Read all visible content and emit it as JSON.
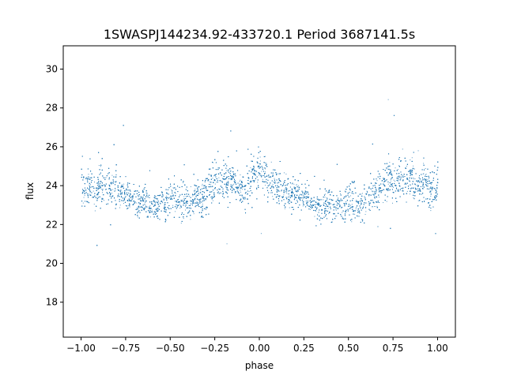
{
  "chart_data": {
    "type": "scatter",
    "title": "1SWASPJ144234.92-433720.1 Period 3687141.5s",
    "xlabel": "phase",
    "ylabel": "flux",
    "xlim": [
      -1.1,
      1.1
    ],
    "ylim": [
      16.2,
      31.2
    ],
    "xticks": [
      -1.0,
      -0.75,
      -0.5,
      -0.25,
      0.0,
      0.25,
      0.5,
      0.75,
      1.0
    ],
    "xtick_labels": [
      "−1.00",
      "−0.75",
      "−0.50",
      "−0.25",
      "0.00",
      "0.25",
      "0.50",
      "0.75",
      "1.00"
    ],
    "yticks": [
      18,
      20,
      22,
      24,
      26,
      28,
      30
    ],
    "ytick_labels": [
      "18",
      "20",
      "22",
      "24",
      "26",
      "28",
      "30"
    ],
    "grid": false,
    "marker_color": "#1f77b4",
    "series": [
      {
        "name": "",
        "x": [
          -1.0,
          -0.98,
          -0.95,
          -0.92,
          -0.9,
          -0.88,
          -0.85,
          -0.82,
          -0.8,
          -0.78,
          -0.75,
          -0.72,
          -0.7,
          -0.68,
          -0.65,
          -0.62,
          -0.6,
          -0.58,
          -0.55,
          -0.52,
          -0.5,
          -0.48,
          -0.45,
          -0.42,
          -0.4,
          -0.38,
          -0.35,
          -0.32,
          -0.3,
          -0.28,
          -0.25,
          -0.22,
          -0.2,
          -0.18,
          -0.15,
          -0.12,
          -0.1,
          -0.08,
          -0.05,
          -0.02,
          0.0,
          0.02,
          0.05,
          0.08,
          0.1,
          0.12,
          0.15,
          0.18,
          0.2,
          0.22,
          0.25,
          0.28,
          0.3,
          0.32,
          0.35,
          0.38,
          0.4,
          0.42,
          0.45,
          0.48,
          0.5,
          0.52,
          0.55,
          0.58,
          0.6,
          0.62,
          0.65,
          0.68,
          0.7,
          0.72,
          0.75,
          0.78,
          0.8,
          0.82,
          0.85,
          0.88,
          0.9,
          0.92,
          0.95,
          0.98,
          1.0
        ],
        "y": [
          24.0,
          23.8,
          24.1,
          23.6,
          24.3,
          24.0,
          23.9,
          23.7,
          24.1,
          23.5,
          23.6,
          23.4,
          23.3,
          23.2,
          23.4,
          23.0,
          23.1,
          22.9,
          23.2,
          23.0,
          23.4,
          23.6,
          23.3,
          23.1,
          23.0,
          23.2,
          23.5,
          23.3,
          23.8,
          24.1,
          24.3,
          24.4,
          24.2,
          24.5,
          24.1,
          24.0,
          23.8,
          23.9,
          24.4,
          24.6,
          24.8,
          24.5,
          24.3,
          24.1,
          24.0,
          23.9,
          23.8,
          23.6,
          23.7,
          23.5,
          23.4,
          23.2,
          23.1,
          23.0,
          23.2,
          22.9,
          23.0,
          22.8,
          23.1,
          22.9,
          23.2,
          23.3,
          23.1,
          23.0,
          23.3,
          23.5,
          23.6,
          23.9,
          24.1,
          24.3,
          24.2,
          24.4,
          24.5,
          24.3,
          24.6,
          24.1,
          23.9,
          24.2,
          24.0,
          23.8,
          24.1
        ],
        "scatter": [
          2.2,
          2.0,
          2.4,
          2.1,
          2.3,
          2.0,
          2.1,
          2.2,
          2.5,
          2.0,
          1.8,
          1.8,
          1.7,
          1.7,
          1.8,
          1.8,
          1.7,
          1.7,
          1.8,
          1.9,
          2.0,
          2.2,
          2.6,
          2.0,
          1.8,
          1.8,
          1.9,
          2.0,
          2.1,
          2.3,
          2.4,
          2.2,
          2.3,
          2.2,
          2.1,
          2.0,
          2.1,
          2.2,
          2.5,
          2.4,
          2.6,
          2.3,
          2.2,
          2.0,
          1.9,
          1.9,
          1.8,
          1.8,
          1.9,
          1.8,
          1.8,
          1.7,
          1.7,
          1.7,
          1.8,
          1.7,
          1.7,
          1.7,
          1.8,
          2.0,
          2.2,
          2.4,
          2.1,
          1.9,
          1.8,
          1.9,
          2.0,
          2.2,
          2.3,
          2.2,
          2.3,
          2.2,
          2.4,
          2.3,
          2.2,
          2.1,
          2.2,
          2.3,
          2.4,
          2.3,
          2.4
        ]
      }
    ]
  }
}
